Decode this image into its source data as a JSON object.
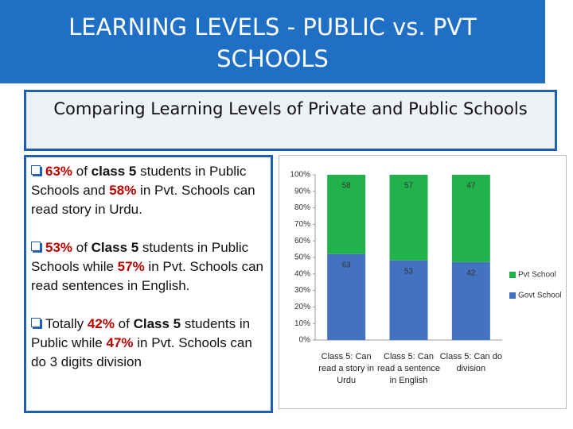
{
  "title": "LEARNING LEVELS  - PUBLIC vs. PVT SCHOOLS",
  "subtitle": "Comparing Learning Levels of Private and Public Schools",
  "bullets": [
    [
      {
        "text": "63%",
        "color": "#c00000",
        "bold": true
      },
      " of ",
      {
        "text": "class 5",
        "bold": true
      },
      " students in Public Schools and ",
      {
        "text": "58%",
        "color": "#c00000",
        "bold": true
      },
      " in Pvt. Schools can read story in Urdu."
    ],
    [
      {
        "text": "53%",
        "color": "#c00000",
        "bold": true
      },
      " of ",
      {
        "text": "Class 5",
        "bold": true
      },
      " students in Public Schools while ",
      {
        "text": "57%",
        "color": "#c00000",
        "bold": true
      },
      " in Pvt. Schools can read sentences in English."
    ],
    [
      "Totally ",
      {
        "text": "42%",
        "color": "#c00000",
        "bold": true
      },
      " of ",
      {
        "text": "Class 5",
        "bold": true
      },
      " students in Public while ",
      {
        "text": "47%",
        "color": "#c00000",
        "bold": true
      },
      " in Pvt. Schools can do 3 digits division"
    ]
  ],
  "chart_data": {
    "type": "bar",
    "stacking": "percent",
    "categories": [
      "Class 5: Can read a story in Urdu",
      "Class 5: Can read a sentence in English",
      "Class 5: Can do division"
    ],
    "series": [
      {
        "name": "Govt School",
        "color": "#4272c0",
        "values": [
          63,
          53,
          42
        ]
      },
      {
        "name": "Pvt School",
        "color": "#22b24c",
        "values": [
          58,
          57,
          47
        ]
      }
    ],
    "ylim": [
      0,
      100
    ],
    "yticks": [
      {
        "value": 0,
        "label": "0%"
      },
      {
        "value": 10,
        "label": "10%"
      },
      {
        "value": 20,
        "label": "20%"
      },
      {
        "value": 30,
        "label": "30%"
      },
      {
        "value": 40,
        "label": "40%"
      },
      {
        "value": 50,
        "label": "50%"
      },
      {
        "value": 60,
        "label": "60%"
      },
      {
        "value": 70,
        "label": "70%"
      },
      {
        "value": 80,
        "label": "80%"
      },
      {
        "value": 90,
        "label": "90%"
      },
      {
        "value": 100,
        "label": "100%"
      }
    ],
    "legend": "right"
  }
}
